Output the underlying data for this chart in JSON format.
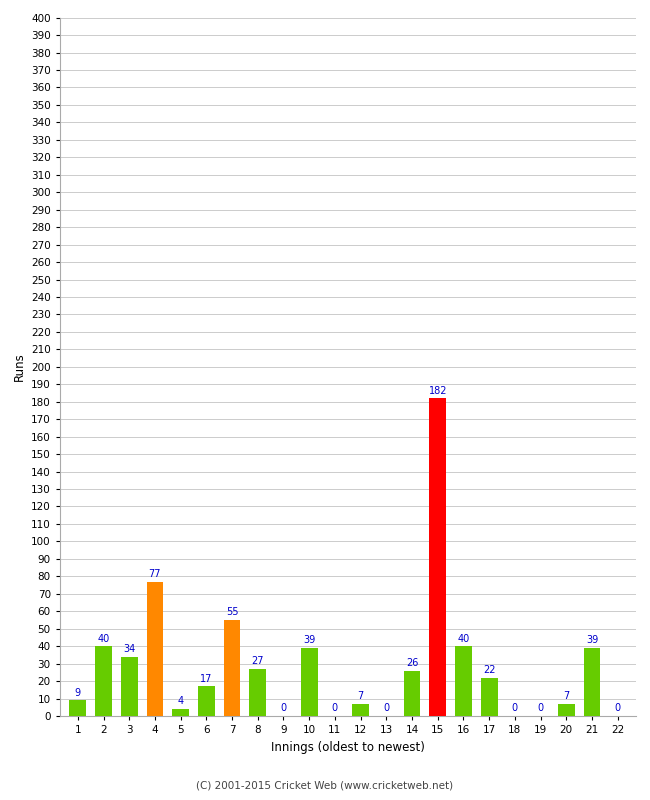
{
  "innings": [
    1,
    2,
    3,
    4,
    5,
    6,
    7,
    8,
    9,
    10,
    11,
    12,
    13,
    14,
    15,
    16,
    17,
    18,
    19,
    20,
    21,
    22
  ],
  "runs": [
    9,
    40,
    34,
    77,
    4,
    17,
    55,
    27,
    0,
    39,
    0,
    7,
    0,
    26,
    182,
    40,
    22,
    0,
    0,
    7,
    39,
    0
  ],
  "colors": [
    "#66cc00",
    "#66cc00",
    "#66cc00",
    "#ff8800",
    "#66cc00",
    "#66cc00",
    "#ff8800",
    "#66cc00",
    "#66cc00",
    "#66cc00",
    "#66cc00",
    "#66cc00",
    "#66cc00",
    "#66cc00",
    "#ff0000",
    "#66cc00",
    "#66cc00",
    "#66cc00",
    "#66cc00",
    "#66cc00",
    "#66cc00",
    "#66cc00"
  ],
  "xlabel": "Innings (oldest to newest)",
  "ylabel": "Runs",
  "ylim": [
    0,
    400
  ],
  "yticks": [
    0,
    10,
    20,
    30,
    40,
    50,
    60,
    70,
    80,
    90,
    100,
    110,
    120,
    130,
    140,
    150,
    160,
    170,
    180,
    190,
    200,
    210,
    220,
    230,
    240,
    250,
    260,
    270,
    280,
    290,
    300,
    310,
    320,
    330,
    340,
    350,
    360,
    370,
    380,
    390,
    400
  ],
  "footer": "(C) 2001-2015 Cricket Web (www.cricketweb.net)",
  "label_color": "#0000cc",
  "background_color": "#ffffff",
  "grid_color": "#cccccc",
  "bar_width": 0.65
}
